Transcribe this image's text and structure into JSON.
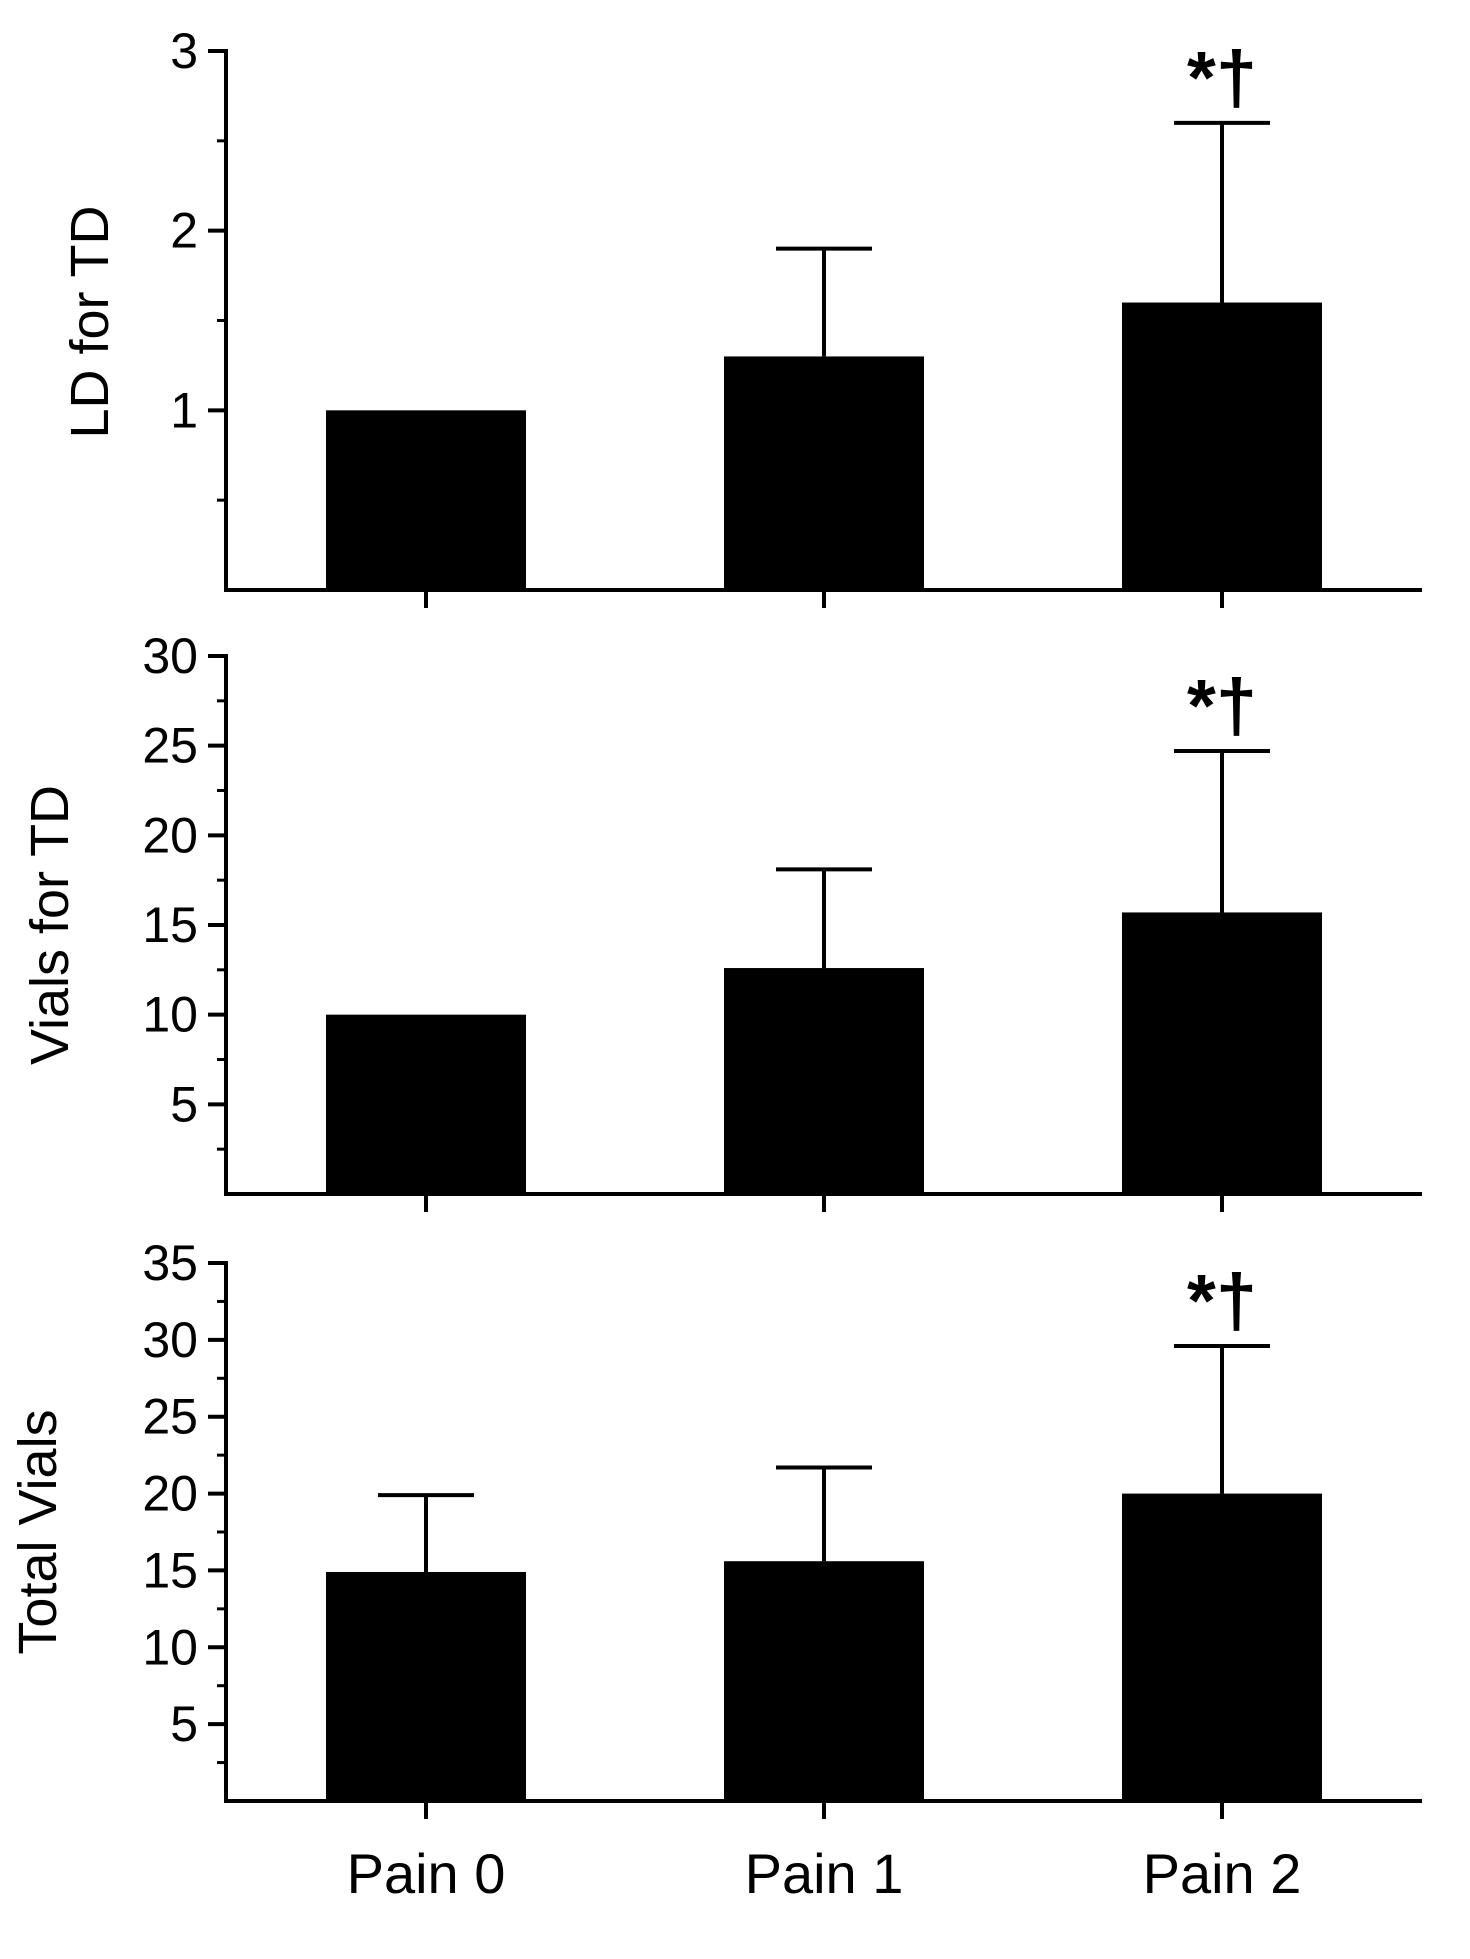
{
  "colors": {
    "bar": "#000000",
    "axis": "#000000",
    "background": "#ffffff"
  },
  "categories": [
    "Pain 0",
    "Pain 1",
    "Pain 2"
  ],
  "chart_data": [
    {
      "type": "bar",
      "title": "",
      "xlabel": "",
      "ylabel": "LD for TD",
      "categories": [
        "Pain 0",
        "Pain 1",
        "Pain 2"
      ],
      "values": [
        1.0,
        1.3,
        1.6
      ],
      "errors": [
        0,
        0.6,
        1.0
      ],
      "ylim": [
        0,
        3
      ],
      "ymajor_ticks": [
        1,
        2,
        3
      ],
      "ytick_labels": [
        "1",
        "2",
        "3"
      ],
      "yminor_step": 0.5,
      "annotations": [
        {
          "category": "Pain 2",
          "text": "*†"
        }
      ]
    },
    {
      "type": "bar",
      "title": "",
      "xlabel": "",
      "ylabel": "Vials for TD",
      "categories": [
        "Pain 0",
        "Pain 1",
        "Pain 2"
      ],
      "values": [
        10.0,
        12.6,
        15.7
      ],
      "errors": [
        0,
        5.5,
        9.0
      ],
      "ylim": [
        0,
        30
      ],
      "ymajor_ticks": [
        5,
        10,
        15,
        20,
        25,
        30
      ],
      "ytick_labels": [
        "5",
        "10",
        "15",
        "20",
        "25",
        "30"
      ],
      "yminor_step": 2.5,
      "annotations": [
        {
          "category": "Pain 2",
          "text": "*†"
        }
      ]
    },
    {
      "type": "bar",
      "title": "",
      "xlabel": "",
      "ylabel": "Total Vials",
      "categories": [
        "Pain 0",
        "Pain 1",
        "Pain 2"
      ],
      "values": [
        14.9,
        15.6,
        20.0
      ],
      "errors": [
        5.0,
        6.1,
        9.6
      ],
      "ylim": [
        0,
        35
      ],
      "ymajor_ticks": [
        5,
        10,
        15,
        20,
        25,
        30,
        35
      ],
      "ytick_labels": [
        "5",
        "10",
        "15",
        "20",
        "25",
        "30",
        "35"
      ],
      "yminor_step": 2.5,
      "annotations": [
        {
          "category": "Pain 2",
          "text": "*†"
        }
      ]
    }
  ]
}
